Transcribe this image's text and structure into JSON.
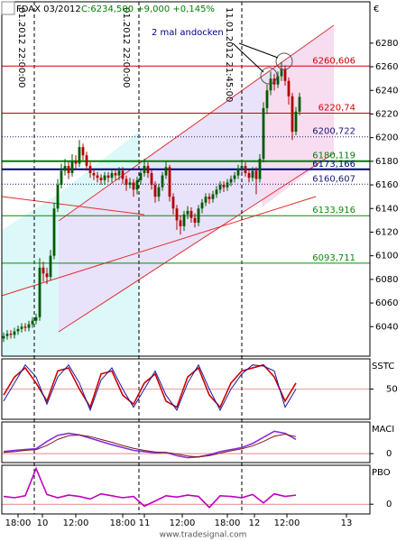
{
  "chart_data": [
    {
      "type": "candlestick",
      "title": "FDAX 03/2012",
      "subtitle": "C:6234,500 +9,000 +0,145%",
      "currency": "€",
      "annotation": "2 mal andocken",
      "watermark": "www.tradesignal.com",
      "markers": [
        "01.2012 22:00:00",
        "01.2012 22:00:00",
        "11.01.2012 21:45:00"
      ],
      "up_color": "#005a00",
      "down_color": "#b00000",
      "xlim": [
        -0.5,
        101.5
      ],
      "xticks": [
        {
          "value": 4,
          "label": "18:00"
        },
        {
          "value": 10.75,
          "label": "10"
        },
        {
          "value": 20,
          "label": "12:00"
        },
        {
          "value": 33,
          "label": "18:00"
        },
        {
          "value": 39,
          "label": "11"
        },
        {
          "value": 49.5,
          "label": "12:00"
        },
        {
          "value": 62,
          "label": "18:00"
        },
        {
          "value": 69.5,
          "label": "12"
        },
        {
          "value": 78.5,
          "label": "12:00"
        },
        {
          "value": 95,
          "label": "13"
        }
      ],
      "ylim": [
        6015,
        6315
      ],
      "yticks": [
        6040,
        6060,
        6080,
        6100,
        6120,
        6140,
        6160,
        6180,
        6200,
        6220,
        6240,
        6260,
        6280
      ],
      "hlines": [
        {
          "value": 6260.606,
          "label": "6260,606",
          "color": "#d00000",
          "style": "solid"
        },
        {
          "value": 6220.74,
          "label": "6220,74",
          "color": "#d00000",
          "style": "solid"
        },
        {
          "value": 6200.722,
          "label": "6200,722",
          "color": "#1a1a6e",
          "style": "dotted"
        },
        {
          "value": 6180.119,
          "label": "6180,119",
          "color": "#008000",
          "style": "thick"
        },
        {
          "value": 6173.166,
          "label": "6173,166",
          "color": "#000080",
          "style": "thick"
        },
        {
          "value": 6160.607,
          "label": "6160,607",
          "color": "#1a1a6e",
          "style": "dotted"
        },
        {
          "value": 6133.916,
          "label": "6133,916",
          "color": "#009000",
          "style": "solid"
        },
        {
          "value": 6093.711,
          "label": "6093,711",
          "color": "#009000",
          "style": "solid"
        }
      ],
      "open": [
        6030,
        6032,
        6034,
        6033,
        6036,
        6038,
        6040,
        6039,
        6042,
        6045,
        6048,
        6090,
        6085,
        6082,
        6100,
        6140,
        6160,
        6172,
        6176,
        6170,
        6180,
        6178,
        6192,
        6185,
        6176,
        6170,
        6168,
        6166,
        6164,
        6168,
        6166,
        6170,
        6168,
        6172,
        6165,
        6160,
        6162,
        6156,
        6164,
        6170,
        6176,
        6170,
        6160,
        6150,
        6158,
        6168,
        6175,
        6150,
        6140,
        6130,
        6125,
        6135,
        6138,
        6132,
        6128,
        6140,
        6145,
        6150,
        6148,
        6152,
        6156,
        6160,
        6158,
        6162,
        6165,
        6168,
        6174,
        6176,
        6170,
        6166,
        6172,
        6165,
        6182,
        6225,
        6240,
        6250,
        6245,
        6252,
        6258,
        6248,
        6235,
        6205,
        6222
      ],
      "high": [
        6035,
        6037,
        6037,
        6039,
        6041,
        6043,
        6043,
        6045,
        6048,
        6051,
        6098,
        6095,
        6090,
        6105,
        6145,
        6165,
        6178,
        6182,
        6180,
        6186,
        6185,
        6198,
        6195,
        6188,
        6179,
        6173,
        6171,
        6169,
        6171,
        6171,
        6173,
        6173,
        6175,
        6175,
        6168,
        6166,
        6165,
        6167,
        6173,
        6182,
        6179,
        6173,
        6163,
        6161,
        6171,
        6180,
        6177,
        6153,
        6143,
        6134,
        6138,
        6142,
        6141,
        6136,
        6143,
        6148,
        6153,
        6153,
        6155,
        6159,
        6163,
        6163,
        6165,
        6168,
        6171,
        6177,
        6180,
        6179,
        6173,
        6175,
        6175,
        6186,
        6230,
        6245,
        6256,
        6254,
        6256,
        6264,
        6261,
        6251,
        6238,
        6226,
        6238
      ],
      "low": [
        6027,
        6029,
        6030,
        6030,
        6033,
        6035,
        6036,
        6036,
        6039,
        6042,
        6045,
        6078,
        6076,
        6079,
        6097,
        6137,
        6157,
        6168,
        6165,
        6167,
        6174,
        6175,
        6181,
        6172,
        6166,
        6164,
        6162,
        6160,
        6160,
        6162,
        6162,
        6164,
        6164,
        6161,
        6155,
        6157,
        6150,
        6152,
        6160,
        6167,
        6166,
        6156,
        6145,
        6146,
        6155,
        6165,
        6146,
        6135,
        6122,
        6118,
        6121,
        6131,
        6128,
        6124,
        6125,
        6136,
        6142,
        6144,
        6145,
        6149,
        6153,
        6154,
        6155,
        6159,
        6162,
        6165,
        6171,
        6167,
        6162,
        6163,
        6152,
        6162,
        6179,
        6220,
        6236,
        6240,
        6242,
        6248,
        6244,
        6228,
        6198,
        6202,
        6219
      ],
      "close": [
        6032,
        6034,
        6033,
        6036,
        6038,
        6040,
        6039,
        6042,
        6045,
        6048,
        6090,
        6085,
        6082,
        6100,
        6140,
        6160,
        6172,
        6176,
        6170,
        6180,
        6178,
        6192,
        6185,
        6176,
        6170,
        6168,
        6166,
        6164,
        6168,
        6166,
        6170,
        6168,
        6172,
        6165,
        6160,
        6162,
        6156,
        6164,
        6170,
        6176,
        6170,
        6160,
        6150,
        6158,
        6168,
        6175,
        6150,
        6140,
        6130,
        6125,
        6135,
        6138,
        6132,
        6128,
        6140,
        6145,
        6150,
        6148,
        6152,
        6156,
        6160,
        6158,
        6162,
        6165,
        6168,
        6174,
        6176,
        6170,
        6166,
        6172,
        6165,
        6182,
        6225,
        6240,
        6250,
        6245,
        6252,
        6258,
        6248,
        6235,
        6205,
        6222,
        6234.5
      ]
    },
    {
      "type": "line",
      "title": "SSTC",
      "ylim": [
        0,
        100
      ],
      "yticks": [
        50
      ],
      "x": [
        0,
        3,
        6,
        9,
        12,
        15,
        18,
        21,
        24,
        27,
        30,
        33,
        36,
        39,
        42,
        45,
        48,
        51,
        54,
        57,
        60,
        63,
        66,
        69,
        72,
        75,
        78,
        81
      ],
      "series": [
        {
          "color": "#d00000",
          "values": [
            40,
            70,
            85,
            60,
            30,
            80,
            85,
            50,
            20,
            75,
            80,
            40,
            25,
            60,
            75,
            30,
            20,
            70,
            85,
            40,
            20,
            60,
            80,
            85,
            90,
            70,
            30,
            60
          ]
        },
        {
          "color": "#1a1aa0",
          "values": [
            30,
            60,
            90,
            70,
            25,
            70,
            90,
            60,
            15,
            65,
            85,
            50,
            20,
            50,
            80,
            40,
            15,
            60,
            90,
            50,
            15,
            50,
            75,
            90,
            88,
            80,
            20,
            50
          ]
        }
      ]
    },
    {
      "type": "line",
      "title": "MACI",
      "ylim": [
        -2.2,
        7.8
      ],
      "yticks": [
        0
      ],
      "x": [
        0,
        3,
        6,
        9,
        12,
        15,
        18,
        21,
        24,
        27,
        30,
        33,
        36,
        39,
        42,
        45,
        48,
        51,
        54,
        57,
        60,
        63,
        66,
        69,
        72,
        75,
        78,
        81
      ],
      "series": [
        {
          "color": "#8a2be2",
          "values": [
            0.5,
            0.8,
            1.0,
            1.2,
            3.0,
            4.5,
            5.0,
            4.6,
            3.8,
            3.0,
            2.2,
            1.5,
            0.8,
            0.5,
            0.2,
            0.3,
            -0.5,
            -1.0,
            -0.8,
            -0.3,
            0.5,
            1.0,
            1.5,
            2.5,
            4.0,
            5.5,
            5.0,
            3.5
          ]
        },
        {
          "color": "#7a1f1f",
          "values": [
            0.3,
            0.5,
            0.8,
            1.0,
            2.0,
            3.5,
            4.4,
            4.6,
            4.2,
            3.5,
            2.8,
            2.0,
            1.3,
            0.8,
            0.4,
            0.3,
            -0.1,
            -0.6,
            -0.8,
            -0.5,
            0.1,
            0.7,
            1.2,
            1.9,
            3.0,
            4.3,
            4.8,
            4.2
          ]
        }
      ]
    },
    {
      "type": "line",
      "title": "PBO",
      "ylim": [
        -1.5,
        6
      ],
      "yticks": [
        0
      ],
      "x": [
        0,
        3,
        6,
        9,
        12,
        15,
        18,
        21,
        24,
        27,
        30,
        33,
        36,
        39,
        42,
        45,
        48,
        51,
        54,
        57,
        60,
        63,
        66,
        69,
        72,
        75,
        78,
        81
      ],
      "series": [
        {
          "color": "#c000c0",
          "values": [
            1.2,
            1.0,
            1.3,
            5.5,
            1.5,
            1.0,
            1.4,
            1.2,
            0.8,
            1.6,
            1.3,
            1.0,
            1.2,
            -0.3,
            0.5,
            1.3,
            1.1,
            1.4,
            1.2,
            -0.5,
            1.3,
            1.2,
            1.0,
            1.5,
            0.2,
            1.6,
            1.2,
            1.4
          ]
        }
      ]
    }
  ]
}
